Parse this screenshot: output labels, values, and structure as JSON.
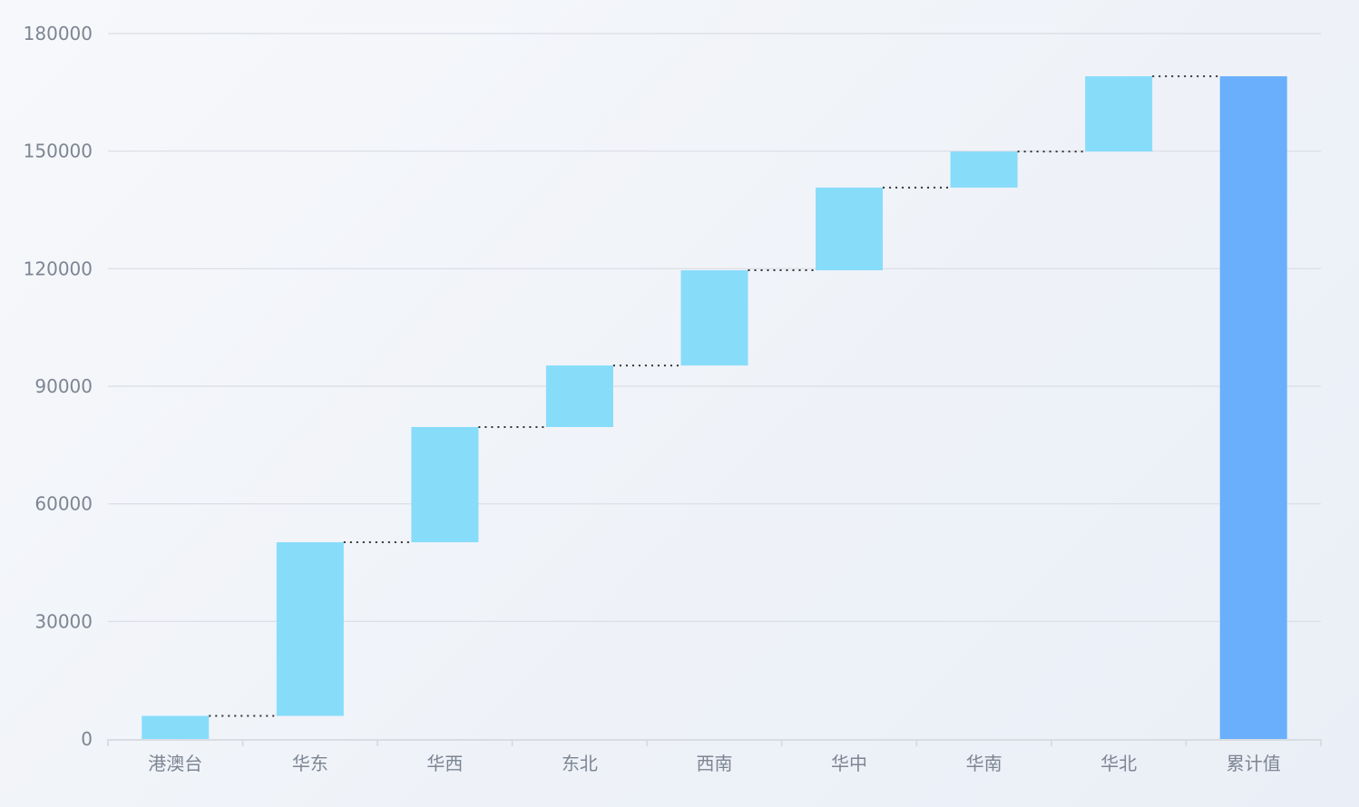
{
  "chart_data": {
    "type": "waterfall",
    "categories": [
      "港澳台",
      "华东",
      "华西",
      "东北",
      "西南",
      "华中",
      "华南",
      "华北",
      "累计值"
    ],
    "values": [
      5900,
      44300,
      29400,
      15700,
      24300,
      21100,
      9200,
      19200,
      169100
    ],
    "total_category": "累计值",
    "ylim": [
      0,
      180000
    ],
    "yticks": [
      "0",
      "30000",
      "60000",
      "90000",
      "120000",
      "150000",
      "180000"
    ],
    "grid": true,
    "legend": "none",
    "colors": {
      "increase": "#87dcfa",
      "total": "#6aaffc",
      "grid": "#d9dde3",
      "axis_text": "#7d8593",
      "connector": "#333333"
    }
  }
}
